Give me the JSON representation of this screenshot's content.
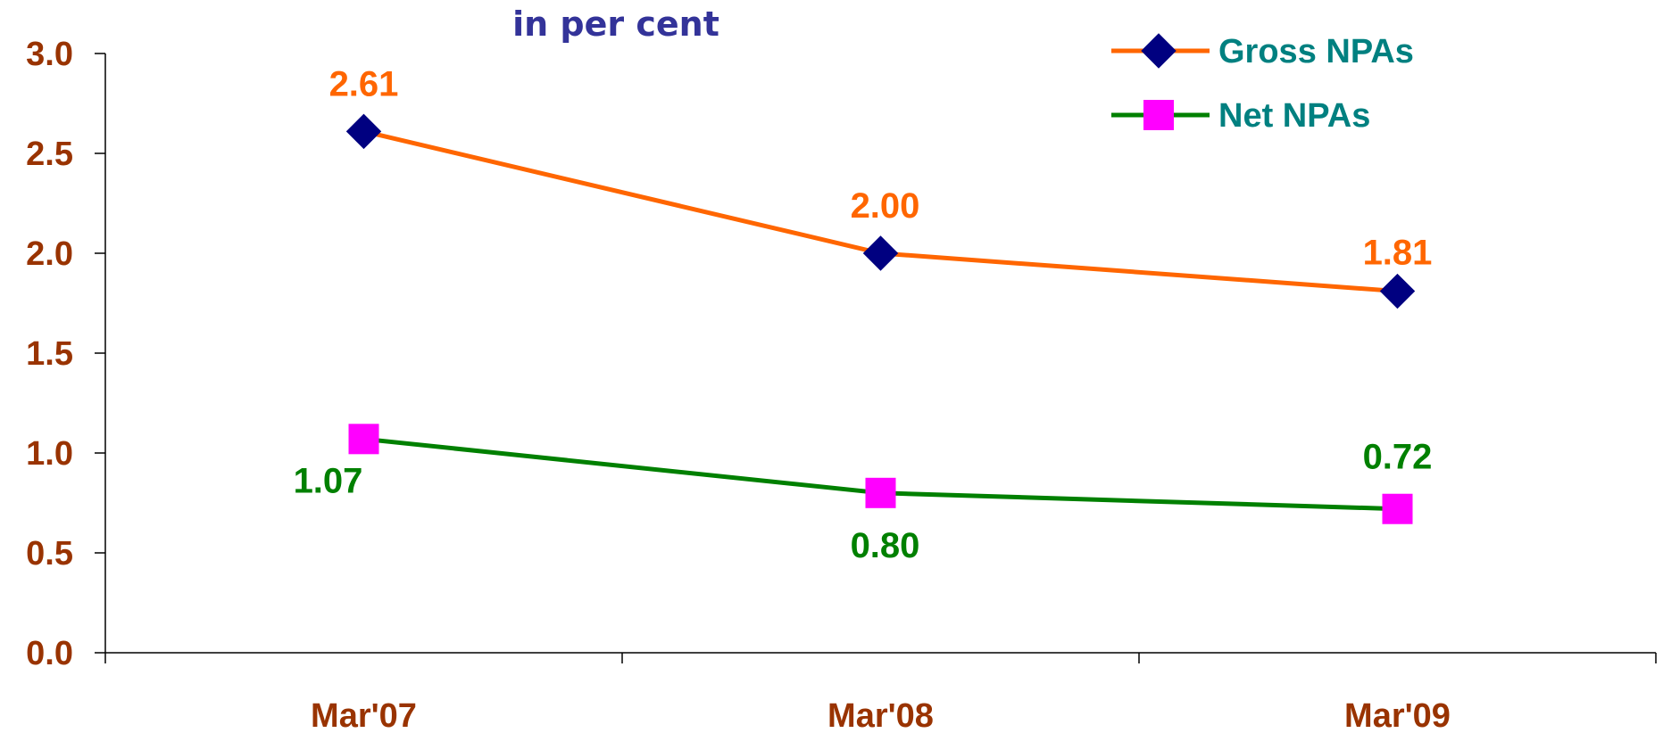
{
  "chart_data": {
    "type": "line",
    "title": "",
    "subtitle": "in per cent",
    "xlabel": "",
    "ylabel": "",
    "categories": [
      "Mar'07",
      "Mar'08",
      "Mar'09"
    ],
    "ylim": [
      0,
      3
    ],
    "yticks": [
      "0.0",
      "0.5",
      "1.0",
      "1.5",
      "2.0",
      "2.5",
      "3.0"
    ],
    "grid": false,
    "legend_position": "top-right",
    "series": [
      {
        "name": "Gross NPAs",
        "values": [
          2.61,
          2.0,
          1.81
        ],
        "labels": [
          "2.61",
          "2.00",
          "1.81"
        ],
        "line_color": "#FF6600",
        "marker": "diamond",
        "marker_color": "#000080",
        "label_color": "#FF6600"
      },
      {
        "name": "Net NPAs",
        "values": [
          1.07,
          0.8,
          0.72
        ],
        "labels": [
          "1.07",
          "0.80",
          "0.72"
        ],
        "line_color": "#008000",
        "marker": "square",
        "marker_color": "#FF00FF",
        "label_color": "#008000"
      }
    ]
  }
}
